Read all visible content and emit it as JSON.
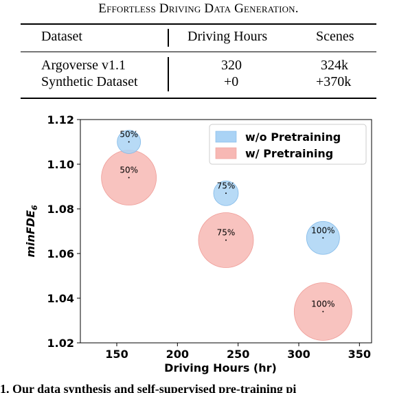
{
  "caption": "Effortless Driving Data Generation.",
  "table": {
    "headers": [
      "Dataset",
      "Driving Hours",
      "Scenes"
    ],
    "rows": [
      [
        "Argoverse v1.1",
        "320",
        "324k"
      ],
      [
        "Synthetic Dataset",
        "+0",
        "+370k"
      ]
    ]
  },
  "chart_data": {
    "type": "scatter",
    "xlabel": "Driving Hours (hr)",
    "ylabel": "minFDE6",
    "xlim": [
      120,
      360
    ],
    "ylim": [
      1.02,
      1.12
    ],
    "xticks": [
      "150",
      "200",
      "250",
      "300",
      "350"
    ],
    "yticks": [
      "1.02",
      "1.04",
      "1.06",
      "1.08",
      "1.10",
      "1.12"
    ],
    "legend_position": "top-right",
    "series": [
      {
        "name": "w/o Pretraining",
        "color": "#aad3f5",
        "points": [
          {
            "x": 160,
            "y": 1.11,
            "label": "50%"
          },
          {
            "x": 240,
            "y": 1.087,
            "label": "75%"
          },
          {
            "x": 320,
            "y": 1.067,
            "label": "100%"
          }
        ]
      },
      {
        "name": "w/ Pretraining",
        "color": "#f7b8b4",
        "points": [
          {
            "x": 160,
            "y": 1.094,
            "label": "50%"
          },
          {
            "x": 240,
            "y": 1.066,
            "label": "75%"
          },
          {
            "x": 320,
            "y": 1.034,
            "label": "100%"
          }
        ]
      }
    ]
  },
  "bottom_text": "1.    Our data synthesis and self-supervised pre-training pi"
}
